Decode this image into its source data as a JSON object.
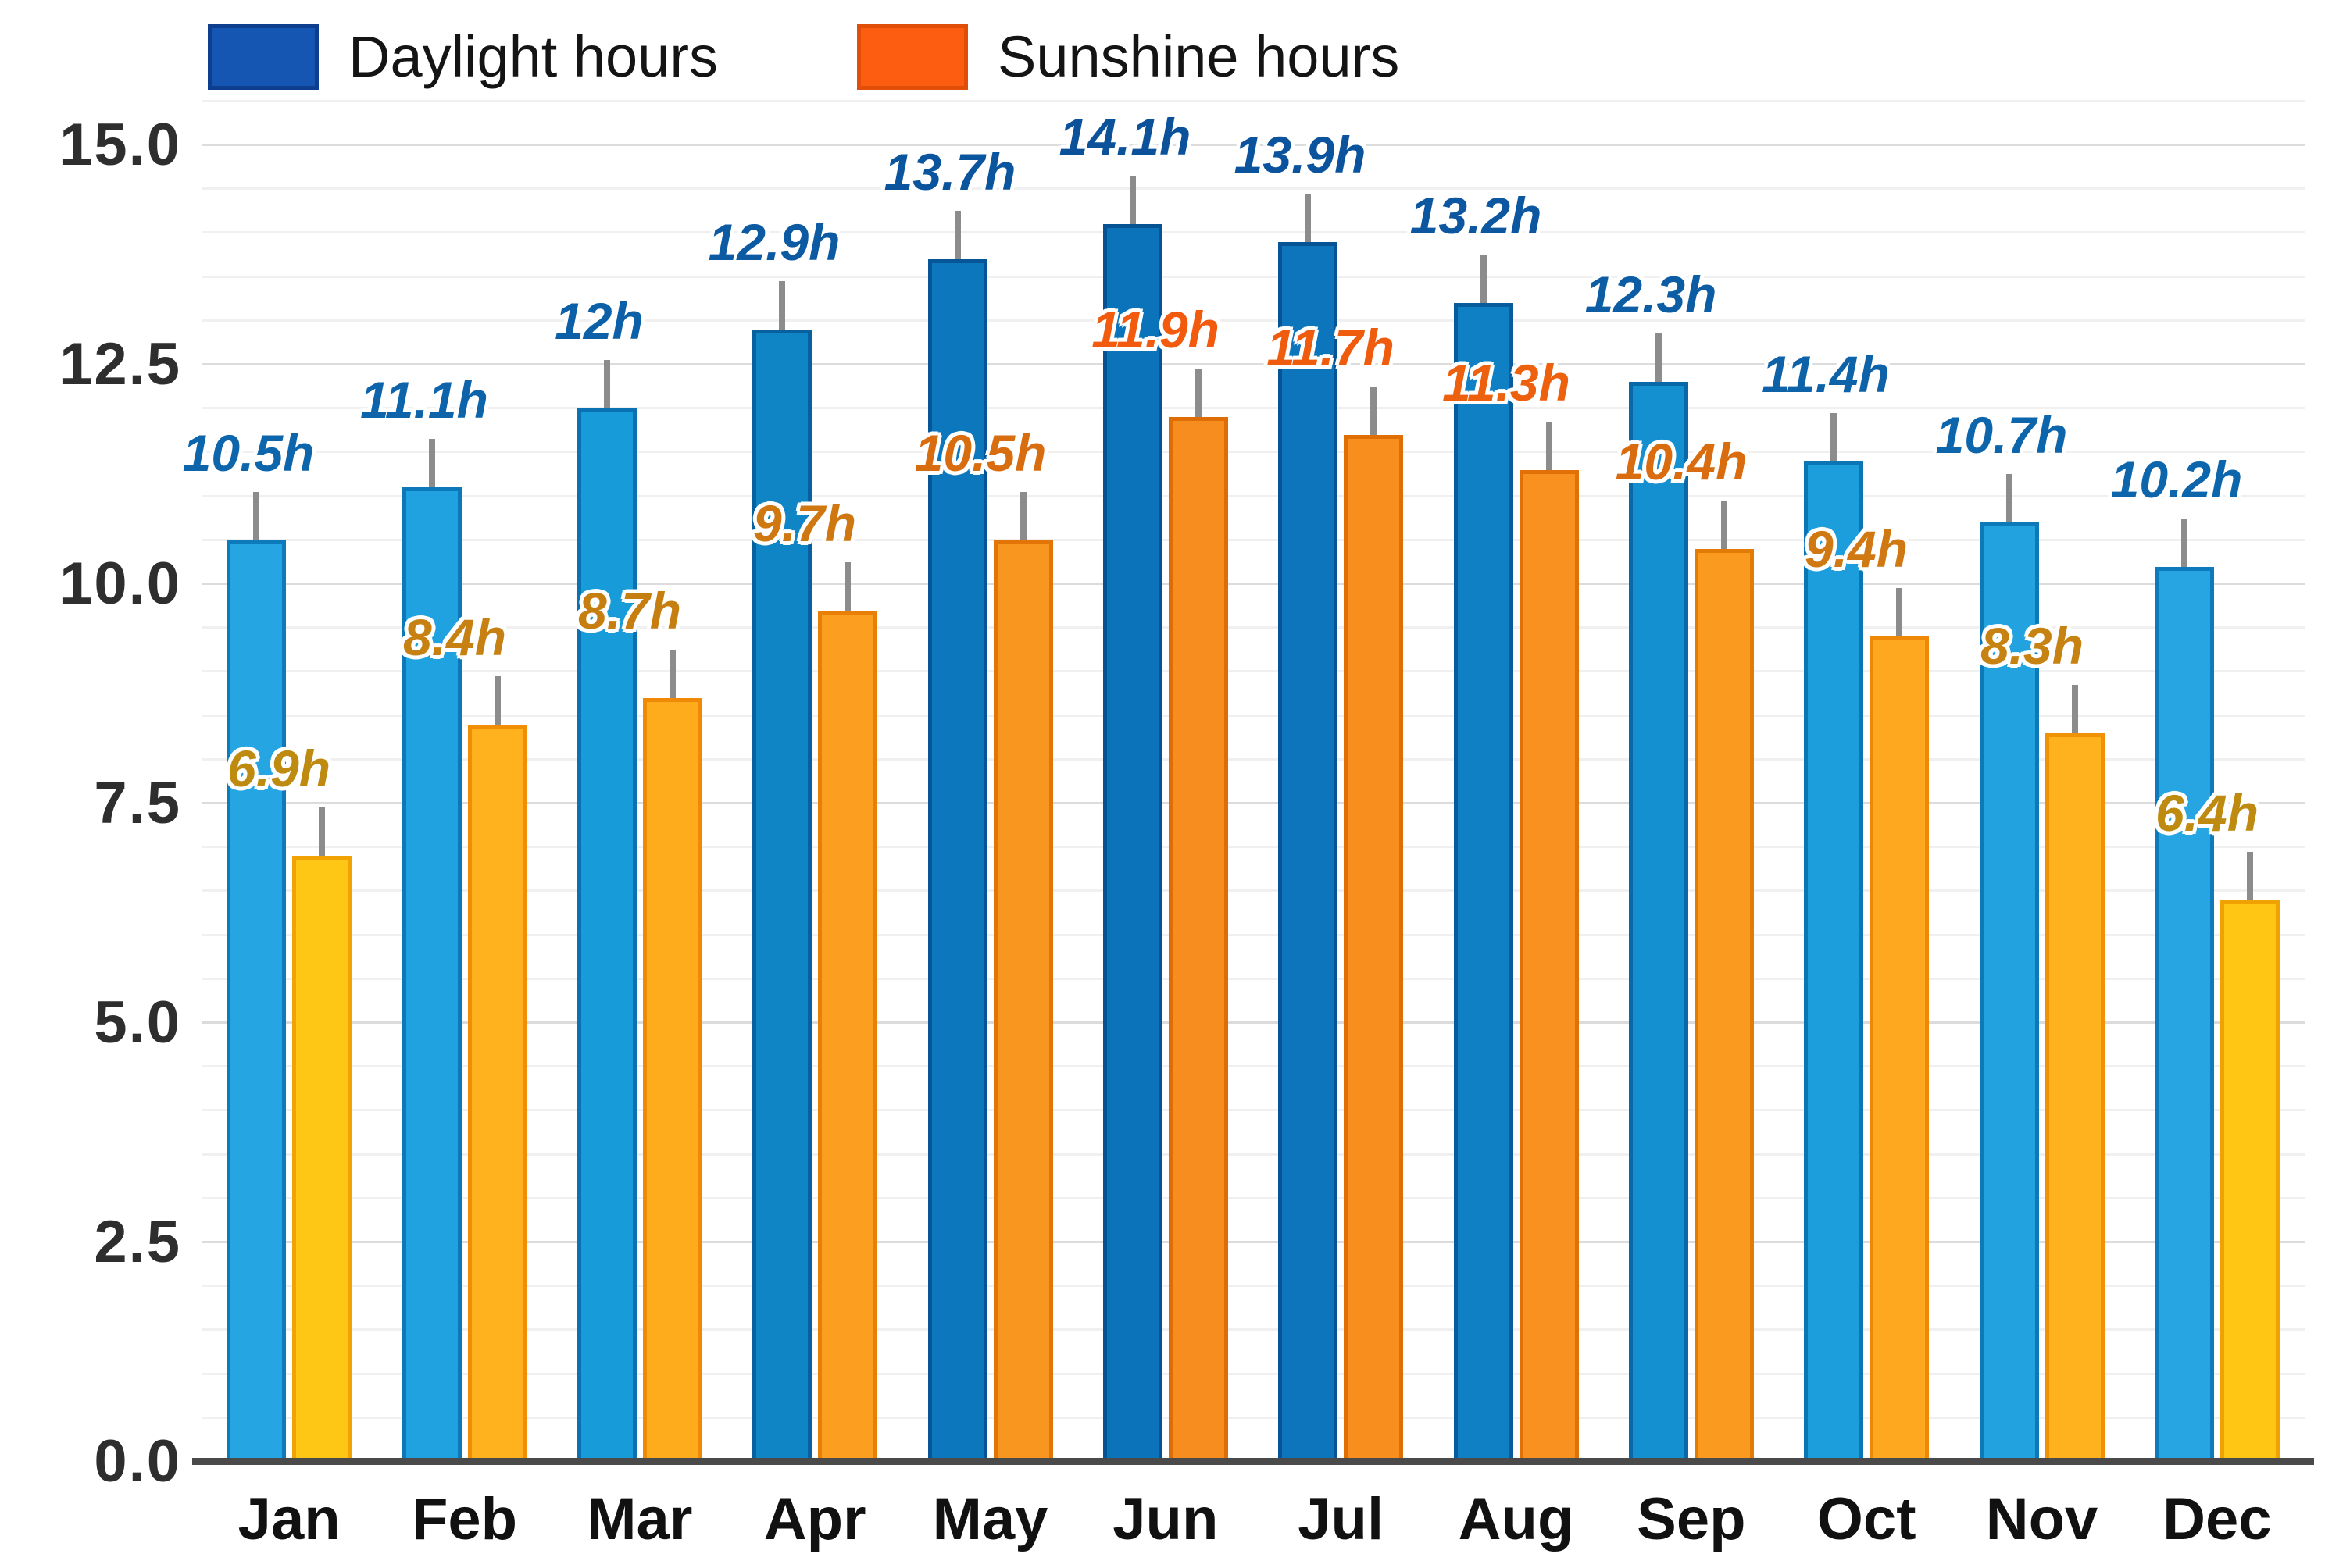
{
  "chart_data": {
    "type": "bar",
    "title": "",
    "categories": [
      "Jan",
      "Feb",
      "Mar",
      "Apr",
      "May",
      "Jun",
      "Jul",
      "Aug",
      "Sep",
      "Oct",
      "Nov",
      "Dec"
    ],
    "series": [
      {
        "name": "Daylight hours",
        "values": [
          10.5,
          11.1,
          12,
          12.9,
          13.7,
          14.1,
          13.9,
          13.2,
          12.3,
          11.4,
          10.7,
          10.2
        ],
        "labels": [
          "10.5h",
          "11.1h",
          "12h",
          "12.9h",
          "13.7h",
          "14.1h",
          "13.9h",
          "13.2h",
          "12.3h",
          "11.4h",
          "10.7h",
          "10.2h"
        ],
        "fill_colors": [
          "#25A5E2",
          "#21A2E0",
          "#189BD9",
          "#0F85C6",
          "#0C77BD",
          "#0B73BA",
          "#0C75BB",
          "#0E80C3",
          "#1490D1",
          "#1C9EDC",
          "#22A3E0",
          "#26A5E2"
        ],
        "border_colors": [
          "#0D7BBB",
          "#0C78B9",
          "#0A72B2",
          "#07619F",
          "#065697",
          "#065394",
          "#065495",
          "#075D9C",
          "#0969A8",
          "#0B76B5",
          "#0C79B8",
          "#0D7BBB"
        ],
        "label_colors": [
          "#0D66AC",
          "#0D64AA",
          "#0C60A7",
          "#0C5AA2",
          "#0B559E",
          "#0B529B",
          "#0B539C",
          "#0C57A0",
          "#0C5DA4",
          "#0D62A8",
          "#0D65AB",
          "#0D66AC"
        ]
      },
      {
        "name": "Sunshine hours",
        "values": [
          6.9,
          8.4,
          8.7,
          9.7,
          10.5,
          11.9,
          11.7,
          11.3,
          10.4,
          9.4,
          8.3,
          6.4
        ],
        "labels": [
          "6.9h",
          "8.4h",
          "8.7h",
          "9.7h",
          "10.5h",
          "11.9h",
          "11.7h",
          "11.3h",
          "10.4h",
          "9.4h",
          "8.3h",
          "6.4h"
        ],
        "fill_colors": [
          "#FFC715",
          "#FFB11E",
          "#FFAC1C",
          "#FC9F20",
          "#F99620",
          "#F78D1E",
          "#F78E1E",
          "#F8911F",
          "#FA9B20",
          "#FEA81F",
          "#FFB21E",
          "#FFC614"
        ],
        "border_colors": [
          "#F0A303",
          "#F18E06",
          "#F08A06",
          "#E87F07",
          "#E27506",
          "#DF6D05",
          "#DF6E05",
          "#E17106",
          "#E37C06",
          "#EE8807",
          "#F19106",
          "#F0A202"
        ],
        "label_colors": [
          "#BE8B10",
          "#C68112",
          "#C77E11",
          "#CF7710",
          "#D86D10",
          "#F25A0D",
          "#F05C0E",
          "#EC600E",
          "#DA6C10",
          "#D07811",
          "#C68312",
          "#BE8B10"
        ]
      }
    ],
    "legend": {
      "position": "top",
      "daylight_swatch_color": "#1456B1",
      "daylight_swatch_border": "#0D3F8E",
      "sunshine_swatch_color": "#FC5D10",
      "sunshine_swatch_border": "#E04E08"
    },
    "y_ticks": [
      {
        "value": 15.0,
        "label": "15.0"
      },
      {
        "value": 12.5,
        "label": "12.5"
      },
      {
        "value": 10.0,
        "label": "10.0"
      },
      {
        "value": 7.5,
        "label": "7.5"
      },
      {
        "value": 5.0,
        "label": "5.0"
      },
      {
        "value": 2.5,
        "label": "2.5"
      },
      {
        "value": 0.0,
        "label": "0.0"
      }
    ],
    "ylim": [
      0,
      15.5
    ],
    "xlabel": "",
    "ylabel": "",
    "grid": {
      "enabled": true,
      "minor_step": 0.5,
      "major_step": 2.5,
      "minor_color": "#F0F0F0",
      "major_color": "#DCDCDC"
    },
    "error_whisker_units": 0.55,
    "whisker_color": "#8C8C8C",
    "axis": {
      "baseline_color": "#4A4A4A",
      "tick_label_color": "#2E2E2E",
      "month_label_color": "#111111"
    }
  }
}
